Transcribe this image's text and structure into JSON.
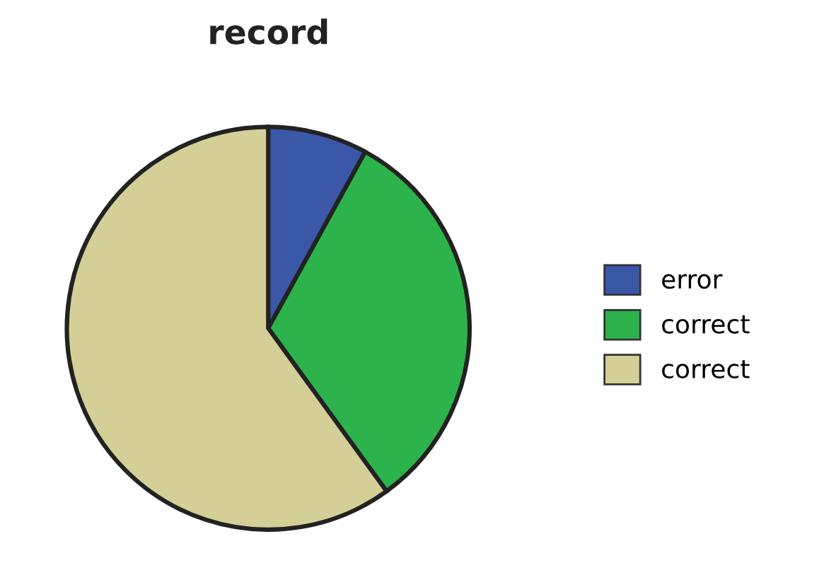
{
  "chart_data": {
    "type": "pie",
    "title": "record",
    "categories": [
      "error",
      "correct",
      "correct"
    ],
    "values": [
      8,
      32,
      60
    ],
    "colors": [
      "#3b58a8",
      "#2db34b",
      "#d4cf97"
    ],
    "legend": "right"
  }
}
